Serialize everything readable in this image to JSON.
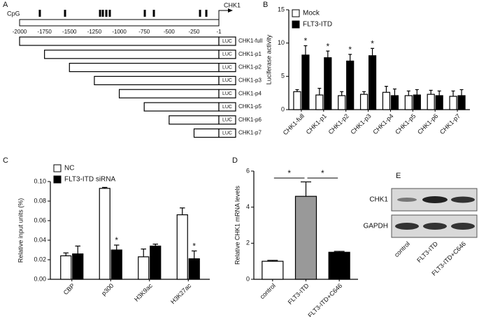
{
  "panel_labels": [
    "A",
    "B",
    "C",
    "D",
    "E"
  ],
  "panel_a": {
    "cpg_label": "CpG",
    "gene_label": "CHK1",
    "ticks": [
      -2000,
      -1750,
      -1500,
      -1250,
      -1000,
      -750,
      -500,
      -250,
      -1
    ],
    "cpg_sites": [
      -1797,
      -1544,
      -1193,
      -1165,
      -1130,
      -1095,
      -744,
      -653,
      -190,
      -127
    ],
    "constructs": [
      {
        "name": "CHK1-full",
        "start": -2000,
        "reporter": "LUC"
      },
      {
        "name": "CHK1-p1",
        "start": -1750,
        "reporter": "LUC"
      },
      {
        "name": "CHK1-p2",
        "start": -1500,
        "reporter": "LUC"
      },
      {
        "name": "CHK1-p3",
        "start": -1250,
        "reporter": "LUC"
      },
      {
        "name": "CHK1-p4",
        "start": -1000,
        "reporter": "LUC"
      },
      {
        "name": "CHK1-p5",
        "start": -750,
        "reporter": "LUC"
      },
      {
        "name": "CHK1-p6",
        "start": -500,
        "reporter": "LUC"
      },
      {
        "name": "CHK1-p7",
        "start": -250,
        "reporter": "LUC"
      }
    ]
  },
  "chart_data": [
    {
      "type": "bar",
      "y_label": "Luciferase activity",
      "categories": [
        "CHK1-full",
        "CHK1-p1",
        "CHK1-p2",
        "CHK1-p3",
        "CHK1-p4",
        "CHK1-p5",
        "CHK1-p6",
        "CHK1-p7"
      ],
      "series": [
        {
          "name": "Mock",
          "color": "#ffffff",
          "values": [
            2.7,
            2.2,
            2.1,
            2.3,
            2.6,
            2.1,
            2.3,
            2.0
          ],
          "errors": [
            0.3,
            1.0,
            0.6,
            0.4,
            0.9,
            0.7,
            0.6,
            0.8
          ]
        },
        {
          "name": "FLT3-ITD",
          "color": "#000000",
          "values": [
            8.2,
            7.8,
            7.3,
            8.1,
            2.1,
            2.2,
            2.1,
            2.1
          ],
          "errors": [
            1.4,
            1.0,
            1.0,
            1.1,
            1.0,
            0.8,
            0.7,
            0.9
          ],
          "markers": [
            "*",
            "*",
            "*",
            "*",
            null,
            null,
            null,
            null
          ]
        }
      ],
      "ylim": [
        0,
        15
      ],
      "yticks": [
        0,
        5,
        10,
        15
      ]
    },
    {
      "type": "bar",
      "y_label": "Relative input units (%)",
      "categories": [
        "CBP",
        "p300",
        "H3K9ac",
        "H3K27ac"
      ],
      "series": [
        {
          "name": "NC",
          "color": "#ffffff",
          "values": [
            0.024,
            0.093,
            0.023,
            0.066
          ],
          "errors": [
            0.003,
            0.001,
            0.008,
            0.007
          ]
        },
        {
          "name": "FLT3-ITD siRNA",
          "color": "#000000",
          "values": [
            0.026,
            0.03,
            0.034,
            0.021
          ],
          "errors": [
            0.008,
            0.005,
            0.002,
            0.008
          ],
          "markers": [
            null,
            "*",
            null,
            "*"
          ]
        }
      ],
      "ylim": [
        0,
        0.1
      ],
      "yticks": [
        {
          "value": 0,
          "label": "0.00"
        },
        {
          "value": 0.02,
          "label": "0.02"
        },
        {
          "value": 0.04,
          "label": "0.04"
        },
        {
          "value": 0.06,
          "label": "0.06"
        },
        {
          "value": 0.08,
          "label": "0.08"
        },
        {
          "value": 0.1,
          "label": "0.10"
        }
      ]
    },
    {
      "type": "bar",
      "y_label": "Relative CHK1 mRNA levels",
      "categories": [
        "control",
        "FLT3-ITD",
        "FLT3-ITD+C646"
      ],
      "colors": [
        "#ffffff",
        "#999999",
        "#000000"
      ],
      "values": [
        1.0,
        4.6,
        1.5
      ],
      "errors": [
        0.05,
        0.8,
        0.05
      ],
      "significance": [
        "*",
        "*"
      ],
      "ylim": [
        0,
        6
      ],
      "yticks": [
        0,
        2,
        4,
        6
      ]
    }
  ],
  "panel_e": {
    "proteins": [
      "CHK1",
      "GAPDH"
    ],
    "lanes": [
      "control",
      "FLT3-ITD",
      "FLT3-ITD+C646"
    ]
  }
}
